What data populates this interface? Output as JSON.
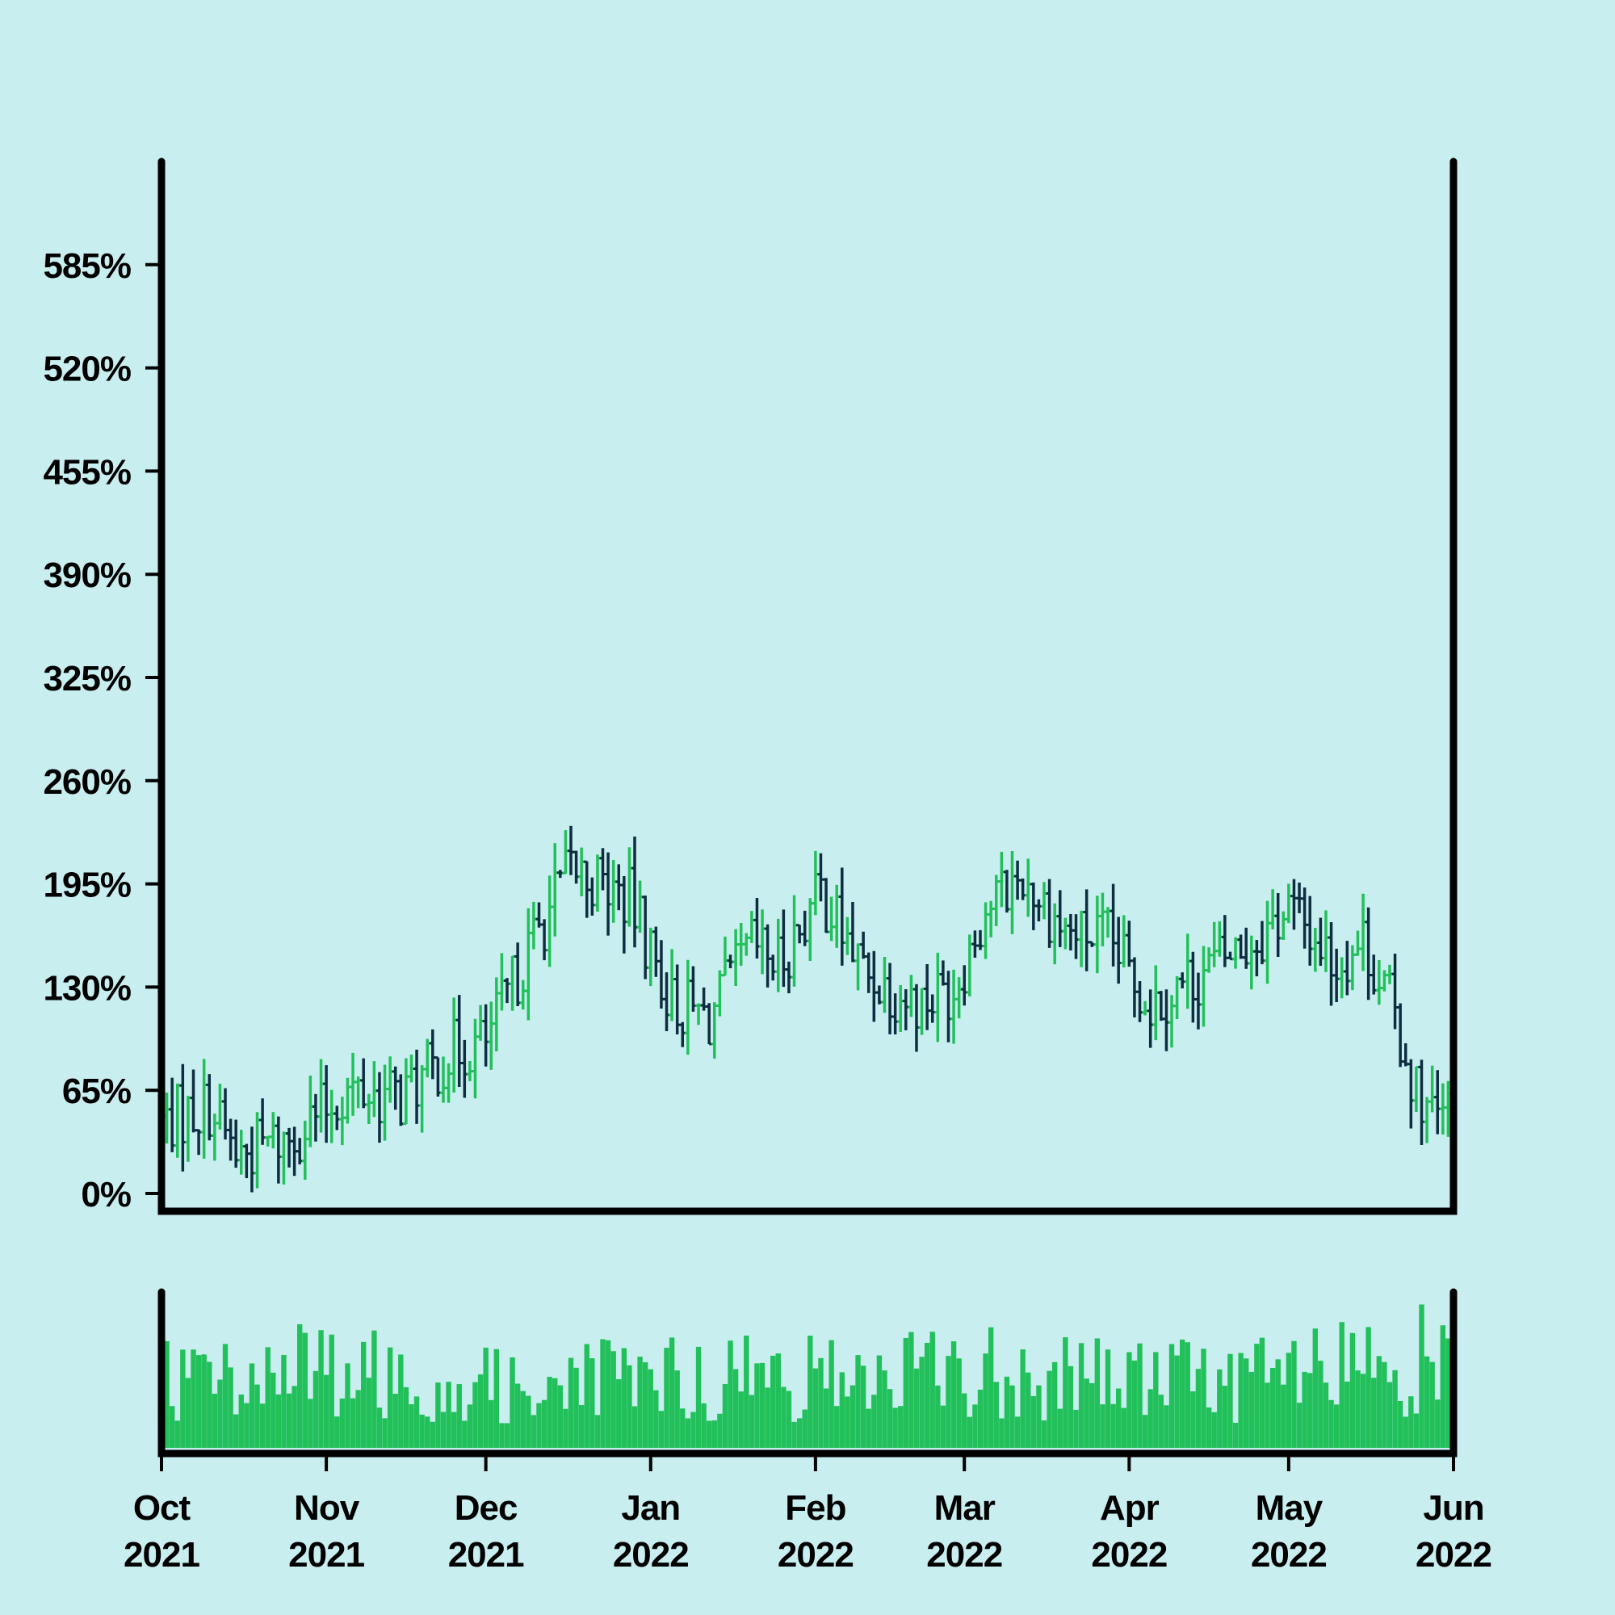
{
  "chart_data": {
    "type": "ohlc",
    "title": "",
    "xlabel": "",
    "ylabel": "",
    "colors": {
      "background": "#c9eef0",
      "up": "#22c05a",
      "down": "#0d2d40",
      "volume": "#22c05a",
      "axis": "#000000"
    },
    "x_range": [
      "2021-10-01",
      "2022-06-01"
    ],
    "ylim": [
      0,
      650
    ],
    "y_ticks": [
      "0%",
      "65%",
      "130%",
      "195%",
      "260%",
      "325%",
      "390%",
      "455%",
      "520%",
      "585%"
    ],
    "x_ticks": [
      {
        "date": "2021-10-01",
        "month": "Oct",
        "year": "2021"
      },
      {
        "date": "2021-11-01",
        "month": "Nov",
        "year": "2021"
      },
      {
        "date": "2021-12-01",
        "month": "Dec",
        "year": "2021"
      },
      {
        "date": "2022-01-01",
        "month": "Jan",
        "year": "2022"
      },
      {
        "date": "2022-02-01",
        "month": "Feb",
        "year": "2022"
      },
      {
        "date": "2022-03-01",
        "month": "Mar",
        "year": "2022"
      },
      {
        "date": "2022-04-01",
        "month": "Apr",
        "year": "2022"
      },
      {
        "date": "2022-05-01",
        "month": "May",
        "year": "2022"
      },
      {
        "date": "2022-06-01",
        "month": "Jun",
        "year": "2022"
      }
    ],
    "price_anchors": [
      {
        "date": "2021-10-01",
        "value": 45
      },
      {
        "date": "2021-10-10",
        "value": 55
      },
      {
        "date": "2021-10-15",
        "value": 25
      },
      {
        "date": "2021-10-25",
        "value": 35
      },
      {
        "date": "2021-11-05",
        "value": 65
      },
      {
        "date": "2021-11-15",
        "value": 60
      },
      {
        "date": "2021-11-25",
        "value": 90
      },
      {
        "date": "2021-12-01",
        "value": 95
      },
      {
        "date": "2021-12-10",
        "value": 160
      },
      {
        "date": "2021-12-17",
        "value": 205
      },
      {
        "date": "2021-12-28",
        "value": 185
      },
      {
        "date": "2022-01-05",
        "value": 120
      },
      {
        "date": "2022-01-12",
        "value": 110
      },
      {
        "date": "2022-01-20",
        "value": 155
      },
      {
        "date": "2022-01-25",
        "value": 145
      },
      {
        "date": "2022-02-02",
        "value": 190
      },
      {
        "date": "2022-02-10",
        "value": 140
      },
      {
        "date": "2022-02-20",
        "value": 120
      },
      {
        "date": "2022-02-27",
        "value": 130
      },
      {
        "date": "2022-03-05",
        "value": 180
      },
      {
        "date": "2022-03-12",
        "value": 200
      },
      {
        "date": "2022-03-20",
        "value": 165
      },
      {
        "date": "2022-03-28",
        "value": 160
      },
      {
        "date": "2022-04-05",
        "value": 120
      },
      {
        "date": "2022-04-15",
        "value": 140
      },
      {
        "date": "2022-04-25",
        "value": 160
      },
      {
        "date": "2022-05-01",
        "value": 180
      },
      {
        "date": "2022-05-05",
        "value": 165
      },
      {
        "date": "2022-05-10",
        "value": 145
      },
      {
        "date": "2022-05-15",
        "value": 160
      },
      {
        "date": "2022-05-20",
        "value": 120
      },
      {
        "date": "2022-05-25",
        "value": 65
      },
      {
        "date": "2022-05-29",
        "value": 45
      },
      {
        "date": "2022-06-01",
        "value": 55
      }
    ],
    "volume_anchors": [
      {
        "date": "2021-10-01",
        "value": 0.45
      },
      {
        "date": "2021-11-01",
        "value": 0.5
      },
      {
        "date": "2021-12-01",
        "value": 0.4
      },
      {
        "date": "2022-01-01",
        "value": 0.45
      },
      {
        "date": "2022-02-01",
        "value": 0.45
      },
      {
        "date": "2022-03-01",
        "value": 0.5
      },
      {
        "date": "2022-04-01",
        "value": 0.45
      },
      {
        "date": "2022-05-01",
        "value": 0.45
      },
      {
        "date": "2022-06-01",
        "value": 0.6
      }
    ],
    "grid": false,
    "legend": "none"
  }
}
